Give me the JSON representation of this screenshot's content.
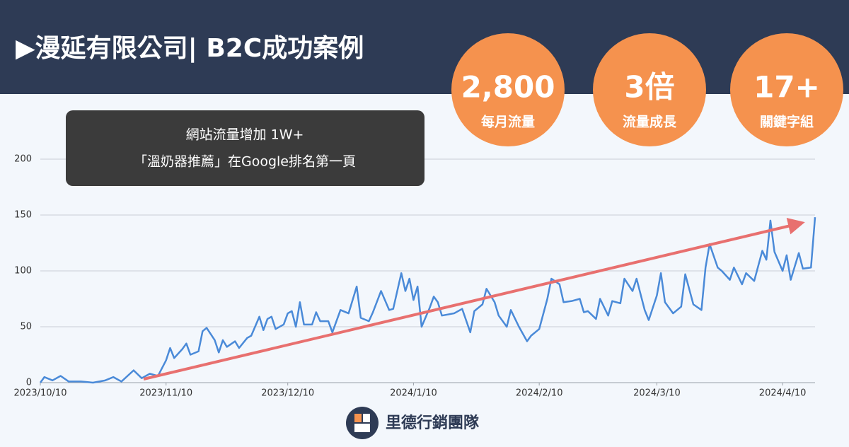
{
  "header": {
    "title": "▶漫延有限公司| B2C成功案例"
  },
  "stats": [
    {
      "value": "2,800",
      "label": "每月流量"
    },
    {
      "value": "3倍",
      "label": "流量成長"
    },
    {
      "value": "17+",
      "label": "關鍵字組"
    }
  ],
  "callout": {
    "lines": [
      "網站流量增加 1W+",
      "「溫奶器推薦」在Google排名第一頁"
    ]
  },
  "chart_data": {
    "type": "line",
    "color": "#4a8ad8",
    "grid": true,
    "x": [
      "2023/10/10",
      "2023/10/11",
      "2023/10/13",
      "2023/10/15",
      "2023/10/17",
      "2023/10/20",
      "2023/10/23",
      "2023/10/26",
      "2023/10/28",
      "2023/10/30",
      "2023/11/2",
      "2023/11/4",
      "2023/11/6",
      "2023/11/8",
      "2023/11/10",
      "2023/11/11",
      "2023/11/12",
      "2023/11/14",
      "2023/11/15",
      "2023/11/16",
      "2023/11/18",
      "2023/11/19",
      "2023/11/20",
      "2023/11/22",
      "2023/11/23",
      "2023/11/24",
      "2023/11/25",
      "2023/11/27",
      "2023/11/28",
      "2023/11/30",
      "2023/12/1",
      "2023/12/3",
      "2023/12/4",
      "2023/12/5",
      "2023/12/6",
      "2023/12/7",
      "2023/12/9",
      "2023/12/10",
      "2023/12/11",
      "2023/12/12",
      "2023/12/13",
      "2023/12/14",
      "2023/12/16",
      "2023/12/17",
      "2023/12/18",
      "2023/12/20",
      "2023/12/21",
      "2023/12/23",
      "2023/12/25",
      "2023/12/27",
      "2023/12/28",
      "2023/12/30",
      "2023/12/31",
      "2024/1/2",
      "2024/1/4",
      "2024/1/5",
      "2024/1/7",
      "2024/1/8",
      "2024/1/9",
      "2024/1/10",
      "2024/1/11",
      "2024/1/12",
      "2024/1/14",
      "2024/1/15",
      "2024/1/16",
      "2024/1/17",
      "2024/1/20",
      "2024/1/22",
      "2024/1/24",
      "2024/1/25",
      "2024/1/27",
      "2024/1/28",
      "2024/1/30",
      "2024/1/31",
      "2024/2/2",
      "2024/2/3",
      "2024/2/5",
      "2024/2/7",
      "2024/2/8",
      "2024/2/10",
      "2024/2/12",
      "2024/2/13",
      "2024/2/15",
      "2024/2/16",
      "2024/2/18",
      "2024/2/20",
      "2024/2/21",
      "2024/2/22",
      "2024/2/24",
      "2024/2/25",
      "2024/2/27",
      "2024/2/28",
      "2024/3/1",
      "2024/3/2",
      "2024/3/4",
      "2024/3/5",
      "2024/3/7",
      "2024/3/8",
      "2024/3/10",
      "2024/3/11",
      "2024/3/12",
      "2024/3/14",
      "2024/3/16",
      "2024/3/17",
      "2024/3/19",
      "2024/3/21",
      "2024/3/22",
      "2024/3/23",
      "2024/3/25",
      "2024/3/26",
      "2024/3/28",
      "2024/3/29",
      "2024/3/31",
      "2024/4/1",
      "2024/4/3",
      "2024/4/5",
      "2024/4/6",
      "2024/4/7",
      "2024/4/8",
      "2024/4/10",
      "2024/4/11",
      "2024/4/12",
      "2024/4/14",
      "2024/4/15",
      "2024/4/17",
      "2024/4/18"
    ],
    "values": [
      0,
      5,
      2,
      6,
      1,
      1,
      0,
      2,
      5,
      1,
      11,
      4,
      8,
      6,
      20,
      31,
      22,
      30,
      35,
      25,
      28,
      46,
      49,
      38,
      27,
      38,
      32,
      37,
      31,
      40,
      42,
      59,
      47,
      57,
      59,
      48,
      52,
      62,
      64,
      50,
      72,
      52,
      52,
      63,
      55,
      55,
      45,
      65,
      62,
      86,
      58,
      55,
      63,
      82,
      65,
      66,
      98,
      82,
      93,
      74,
      86,
      50,
      67,
      77,
      72,
      60,
      62,
      66,
      45,
      64,
      70,
      84,
      72,
      60,
      50,
      65,
      50,
      37,
      42,
      48,
      75,
      93,
      88,
      72,
      73,
      75,
      63,
      64,
      57,
      75,
      60,
      73,
      71,
      93,
      82,
      93,
      65,
      56,
      78,
      98,
      72,
      62,
      68,
      97,
      70,
      65,
      103,
      124,
      103,
      100,
      92,
      103,
      88,
      98,
      91,
      118,
      110,
      145,
      117,
      100,
      114,
      92,
      116,
      102,
      103,
      148
    ],
    "xlim": [
      "2023/10/10",
      "2024/4/18"
    ],
    "xticks": [
      "2023/10/10",
      "2023/11/10",
      "2023/12/10",
      "2024/1/10",
      "2024/2/10",
      "2024/3/10",
      "2024/4/10"
    ],
    "ylim": [
      0,
      200
    ],
    "yticks": [
      0,
      50,
      100,
      150,
      200
    ]
  },
  "footer": {
    "brand": "里德行銷團隊"
  }
}
